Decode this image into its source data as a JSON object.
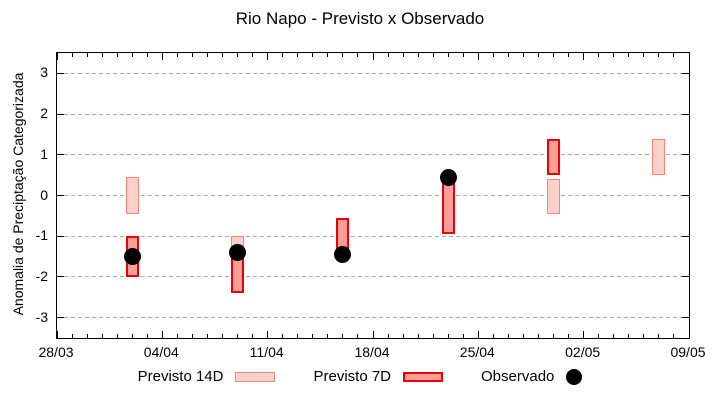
{
  "chart_data": {
    "type": "bar",
    "title": "Rio Napo - Previsto x Observado",
    "xlabel": "",
    "ylabel": "Anomalia de Preciptação Categorizada",
    "ylim": [
      -3.5,
      3.5
    ],
    "yticks": [
      -3,
      -2,
      -1,
      0,
      1,
      2,
      3
    ],
    "x_range_days": 42,
    "xticks": [
      {
        "label": "28/03",
        "day": 0
      },
      {
        "label": "04/04",
        "day": 7
      },
      {
        "label": "11/04",
        "day": 14
      },
      {
        "label": "18/04",
        "day": 21
      },
      {
        "label": "25/04",
        "day": 28
      },
      {
        "label": "02/05",
        "day": 35
      },
      {
        "label": "09/05",
        "day": 42
      }
    ],
    "grid": "horizontal-dashed",
    "legend_position": "bottom-center",
    "legend": [
      {
        "label": "Previsto 14D",
        "type": "box"
      },
      {
        "label": "Previsto 7D",
        "type": "box"
      },
      {
        "label": "Observado",
        "type": "dot"
      }
    ],
    "series": [
      {
        "name": "Previsto 14D",
        "kind": "range-bar",
        "bars": [
          {
            "date": "02/04",
            "day": 5,
            "from": -0.45,
            "to": 0.45
          },
          {
            "date": "09/04",
            "day": 12,
            "from": -1.5,
            "to": -1.0
          },
          {
            "date": "30/04",
            "day": 33,
            "from": -0.45,
            "to": 0.4
          },
          {
            "date": "07/05",
            "day": 40,
            "from": 0.5,
            "to": 1.4
          }
        ]
      },
      {
        "name": "Previsto 7D",
        "kind": "range-bar",
        "bars": [
          {
            "date": "02/04",
            "day": 5,
            "from": -2.0,
            "to": -1.0
          },
          {
            "date": "09/04",
            "day": 12,
            "from": -2.4,
            "to": -1.4
          },
          {
            "date": "16/04",
            "day": 19,
            "from": -1.35,
            "to": -0.55
          },
          {
            "date": "23/04",
            "day": 26,
            "from": -0.95,
            "to": 0.35
          },
          {
            "date": "30/04",
            "day": 33,
            "from": 0.5,
            "to": 1.4
          }
        ]
      },
      {
        "name": "Observado",
        "kind": "point",
        "points": [
          {
            "date": "02/04",
            "day": 5,
            "value": -1.5
          },
          {
            "date": "09/04",
            "day": 12,
            "value": -1.4
          },
          {
            "date": "16/04",
            "day": 19,
            "value": -1.45
          },
          {
            "date": "23/04",
            "day": 26,
            "value": 0.45
          }
        ]
      }
    ],
    "colors": {
      "previsto_14d_fill": "#fbd1ca",
      "previsto_14d_border": "#f2897b",
      "previsto_7d_fill": "#fb9e96",
      "previsto_7d_border": "#e8000b",
      "observado": "#000000",
      "grid": "#a8a8a8",
      "axis": "#000000",
      "background": "#ffffff"
    }
  }
}
